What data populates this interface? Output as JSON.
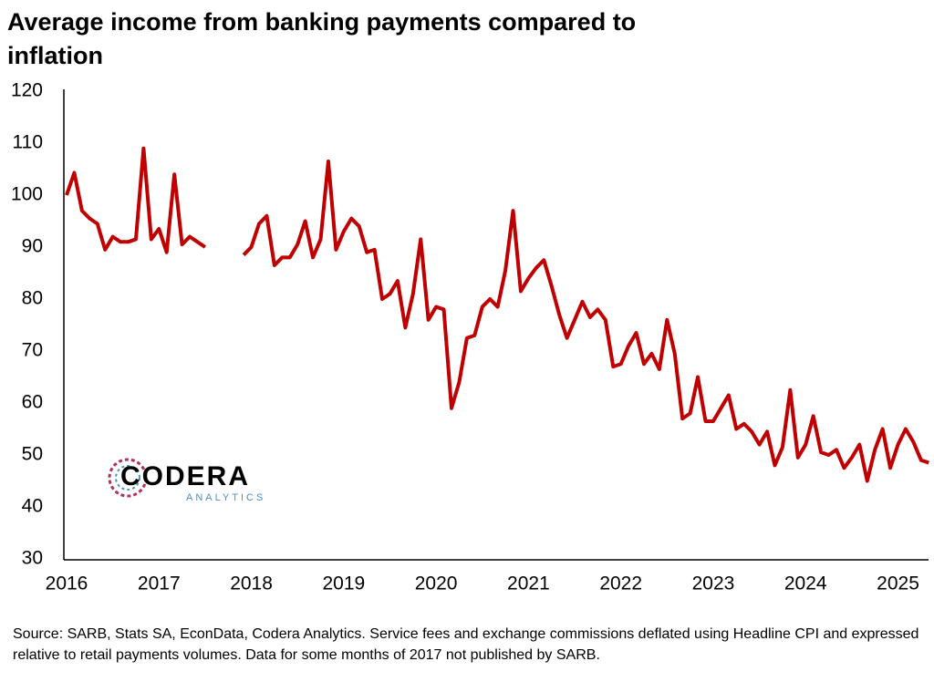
{
  "chart_data": {
    "type": "line",
    "title": "Average income from banking payments compared to inflation",
    "source": "Source: SARB, Stats SA, EconData, Codera Analytics. Service fees and exchange commissions deflated using Headline CPI and expressed relative to retail payments volumes. Data for some months of 2017 not published by SARB.",
    "logo_text": "CODERA",
    "logo_subtext": "ANALYTICS",
    "categories": [
      "2016",
      null,
      null,
      null,
      null,
      null,
      null,
      null,
      null,
      null,
      null,
      null,
      "2017",
      null,
      null,
      null,
      null,
      null,
      null,
      null,
      null,
      null,
      null,
      null,
      "2018",
      null,
      null,
      null,
      null,
      null,
      null,
      null,
      null,
      null,
      null,
      null,
      "2019",
      null,
      null,
      null,
      null,
      null,
      null,
      null,
      null,
      null,
      null,
      null,
      "2020",
      null,
      null,
      null,
      null,
      null,
      null,
      null,
      null,
      null,
      null,
      null,
      "2021",
      null,
      null,
      null,
      null,
      null,
      null,
      null,
      null,
      null,
      null,
      null,
      "2022",
      null,
      null,
      null,
      null,
      null,
      null,
      null,
      null,
      null,
      null,
      null,
      "2023",
      null,
      null,
      null,
      null,
      null,
      null,
      null,
      null,
      null,
      null,
      null,
      "2024",
      null,
      null,
      null,
      null,
      null,
      null,
      null,
      null,
      null,
      null,
      null,
      "2025",
      null,
      null,
      null,
      null
    ],
    "series": [
      {
        "color": "#c00000",
        "values": [
          100,
          104.3,
          97,
          95.5,
          94.5,
          89.5,
          92,
          91,
          91,
          91.5,
          109,
          91.5,
          93.5,
          89,
          104,
          90.5,
          92,
          91,
          90,
          null,
          null,
          null,
          null,
          88.5,
          90,
          94.5,
          96,
          86.5,
          88,
          88,
          90.5,
          95,
          88,
          91.5,
          106.5,
          89.5,
          93,
          95.5,
          94,
          89,
          89.5,
          80,
          81,
          83.5,
          74.5,
          81,
          91.5,
          76,
          78.5,
          78,
          59,
          64,
          72.5,
          73,
          78.5,
          80,
          78.5,
          85.5,
          97,
          81.5,
          84,
          86,
          87.5,
          82.5,
          77,
          72.5,
          76,
          79.5,
          76.5,
          78,
          76,
          67,
          67.5,
          71,
          73.5,
          67.5,
          69.5,
          66.5,
          76,
          69.5,
          57,
          58,
          65,
          56.5,
          56.5,
          59,
          61.5,
          55,
          56,
          54.5,
          52,
          54.5,
          48,
          51.5,
          62.5,
          49.5,
          52,
          57.5,
          50.5,
          50,
          51,
          47.5,
          49.5,
          52,
          45,
          51,
          55,
          47.5,
          52,
          55,
          52.5,
          49,
          48.5
        ]
      }
    ],
    "ylim": [
      30,
      120
    ],
    "yticks": [
      30,
      40,
      50,
      60,
      70,
      80,
      90,
      100,
      110,
      120
    ],
    "grid": false
  }
}
